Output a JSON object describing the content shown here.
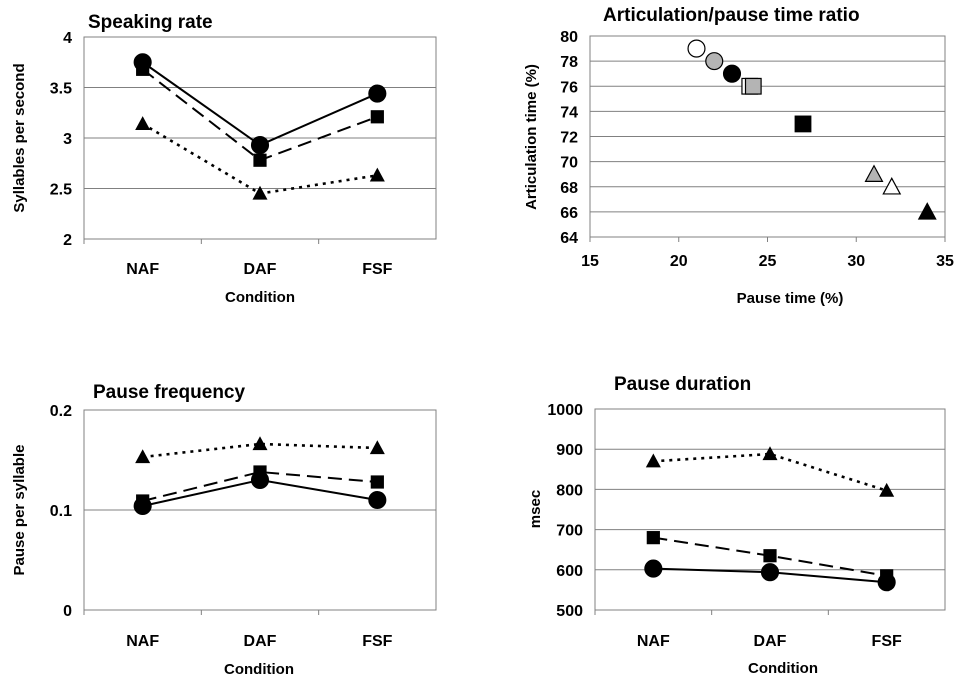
{
  "chart_data": [
    {
      "type": "line",
      "title": "Speaking rate",
      "xlabel": "Condition",
      "ylabel": "Syllables per second",
      "categories": [
        "NAF",
        "DAF",
        "FSF"
      ],
      "ylim": [
        2,
        4
      ],
      "yticks": [
        "2",
        "2.5",
        "3",
        "3.5",
        "4"
      ],
      "grid": true,
      "series": [
        {
          "marker": "circle",
          "line": "solid",
          "values": [
            3.75,
            2.93,
            3.44
          ]
        },
        {
          "marker": "square",
          "line": "dashed",
          "values": [
            3.68,
            2.78,
            3.21
          ]
        },
        {
          "marker": "triangle",
          "line": "dotted",
          "values": [
            3.14,
            2.45,
            2.63
          ]
        }
      ]
    },
    {
      "type": "scatter",
      "title": "Articulation/pause time ratio",
      "xlabel": "Pause time (%)",
      "ylabel": "Articulation time (%)",
      "xlim": [
        15,
        35
      ],
      "ylim": [
        64,
        80
      ],
      "xticks": [
        "15",
        "20",
        "25",
        "30",
        "35"
      ],
      "yticks": [
        "64",
        "66",
        "68",
        "70",
        "72",
        "74",
        "76",
        "78",
        "80"
      ],
      "grid": true,
      "points": [
        {
          "x": 21,
          "y": 79,
          "marker": "circle",
          "fill": "#ffffff"
        },
        {
          "x": 22,
          "y": 78,
          "marker": "circle",
          "fill": "#b4b4b4"
        },
        {
          "x": 23,
          "y": 77,
          "marker": "circle",
          "fill": "#000000"
        },
        {
          "x": 24,
          "y": 76,
          "marker": "square",
          "fill": "#ffffff"
        },
        {
          "x": 24.2,
          "y": 76,
          "marker": "square",
          "fill": "#b4b4b4"
        },
        {
          "x": 27,
          "y": 73,
          "marker": "square",
          "fill": "#000000"
        },
        {
          "x": 31,
          "y": 69,
          "marker": "triangle",
          "fill": "#b4b4b4"
        },
        {
          "x": 32,
          "y": 68,
          "marker": "triangle",
          "fill": "#ffffff"
        },
        {
          "x": 34,
          "y": 66,
          "marker": "triangle",
          "fill": "#000000"
        }
      ]
    },
    {
      "type": "line",
      "title": "Pause frequency",
      "xlabel": "Condition",
      "ylabel": "Pause per syllable",
      "categories": [
        "NAF",
        "DAF",
        "FSF"
      ],
      "ylim": [
        0,
        0.2
      ],
      "yticks": [
        "0",
        "0.1",
        "0.2"
      ],
      "grid": true,
      "series": [
        {
          "marker": "circle",
          "line": "solid",
          "values": [
            0.104,
            0.13,
            0.11
          ]
        },
        {
          "marker": "square",
          "line": "dashed",
          "values": [
            0.109,
            0.138,
            0.128
          ]
        },
        {
          "marker": "triangle",
          "line": "dotted",
          "values": [
            0.153,
            0.166,
            0.162
          ]
        }
      ]
    },
    {
      "type": "line",
      "title": "Pause duration",
      "xlabel": "Condition",
      "ylabel": "msec",
      "categories": [
        "NAF",
        "DAF",
        "FSF"
      ],
      "ylim": [
        500,
        1000
      ],
      "yticks": [
        "500",
        "600",
        "700",
        "800",
        "900",
        "1000"
      ],
      "grid": true,
      "series": [
        {
          "marker": "circle",
          "line": "solid",
          "values": [
            603,
            594,
            569
          ]
        },
        {
          "marker": "square",
          "line": "dashed",
          "values": [
            680,
            635,
            585
          ]
        },
        {
          "marker": "triangle",
          "line": "dotted",
          "values": [
            870,
            888,
            797
          ]
        }
      ]
    }
  ]
}
